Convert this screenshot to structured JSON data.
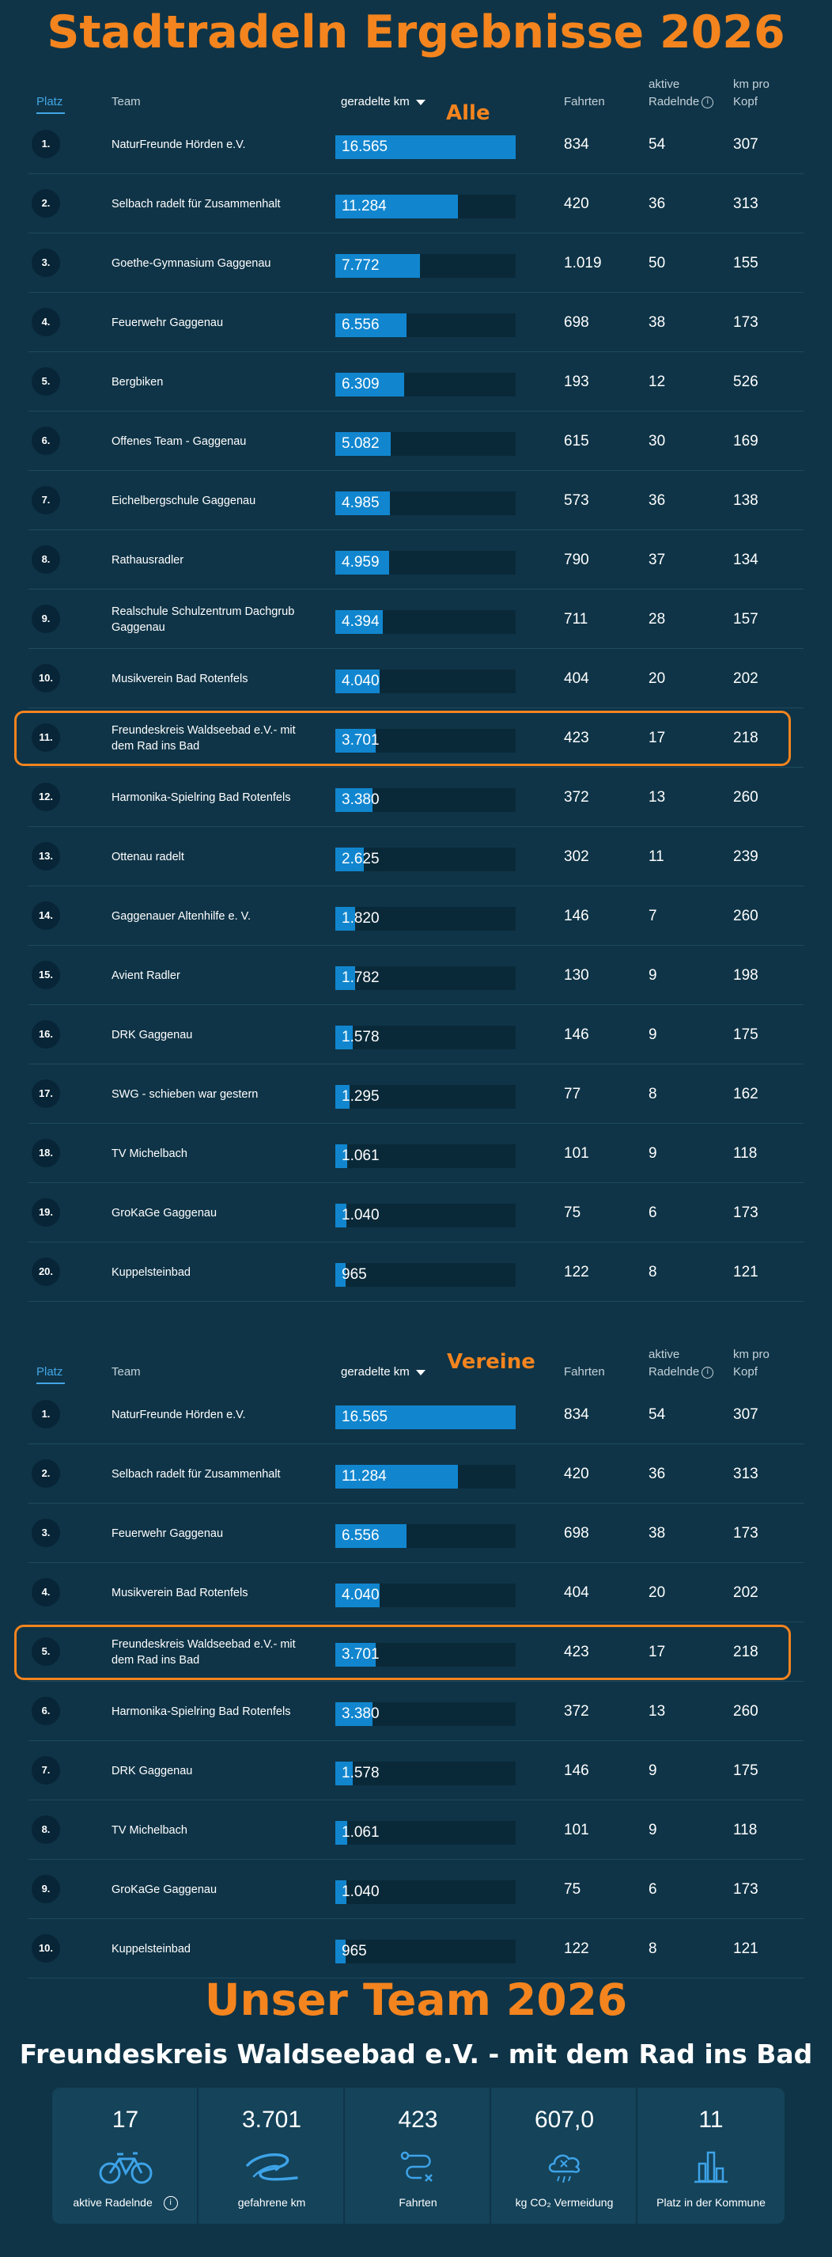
{
  "page_title": "Stadtradeln Ergebnisse 2026",
  "headers": {
    "platz": "Platz",
    "team": "Team",
    "km": "geradelte km",
    "fahrten": "Fahrten",
    "aktive_line1": "aktive",
    "aktive_line2": "Radelnde",
    "kmpro_line1": "km pro",
    "kmpro_line2": "Kopf",
    "info": "i"
  },
  "section_all": {
    "label": "Alle",
    "rows": [
      {
        "rank": "1.",
        "team": "NaturFreunde Hörden e.V.",
        "km": "16.565",
        "km_value": 16565,
        "fahrten": "834",
        "aktive": "54",
        "kmpro": "307"
      },
      {
        "rank": "2.",
        "team": "Selbach radelt für Zusammenhalt",
        "km": "11.284",
        "km_value": 11284,
        "fahrten": "420",
        "aktive": "36",
        "kmpro": "313"
      },
      {
        "rank": "3.",
        "team": "Goethe-Gymnasium Gaggenau",
        "km": "7.772",
        "km_value": 7772,
        "fahrten": "1.019",
        "aktive": "50",
        "kmpro": "155"
      },
      {
        "rank": "4.",
        "team": "Feuerwehr Gaggenau",
        "km": "6.556",
        "km_value": 6556,
        "fahrten": "698",
        "aktive": "38",
        "kmpro": "173"
      },
      {
        "rank": "5.",
        "team": "Bergbiken",
        "km": "6.309",
        "km_value": 6309,
        "fahrten": "193",
        "aktive": "12",
        "kmpro": "526"
      },
      {
        "rank": "6.",
        "team": "Offenes Team - Gaggenau",
        "km": "5.082",
        "km_value": 5082,
        "fahrten": "615",
        "aktive": "30",
        "kmpro": "169"
      },
      {
        "rank": "7.",
        "team": "Eichelbergschule Gaggenau",
        "km": "4.985",
        "km_value": 4985,
        "fahrten": "573",
        "aktive": "36",
        "kmpro": "138"
      },
      {
        "rank": "8.",
        "team": "Rathausradler",
        "km": "4.959",
        "km_value": 4959,
        "fahrten": "790",
        "aktive": "37",
        "kmpro": "134"
      },
      {
        "rank": "9.",
        "team": "Realschule Schulzentrum Dachgrub Gaggenau",
        "km": "4.394",
        "km_value": 4394,
        "fahrten": "711",
        "aktive": "28",
        "kmpro": "157"
      },
      {
        "rank": "10.",
        "team": "Musikverein Bad Rotenfels",
        "km": "4.040",
        "km_value": 4040,
        "fahrten": "404",
        "aktive": "20",
        "kmpro": "202"
      },
      {
        "rank": "11.",
        "team": "Freundeskreis Waldseebad e.V.- mit dem Rad ins Bad",
        "km": "3.701",
        "km_value": 3701,
        "fahrten": "423",
        "aktive": "17",
        "kmpro": "218",
        "highlight": true
      },
      {
        "rank": "12.",
        "team": "Harmonika-Spielring Bad Rotenfels",
        "km": "3.380",
        "km_value": 3380,
        "fahrten": "372",
        "aktive": "13",
        "kmpro": "260"
      },
      {
        "rank": "13.",
        "team": "Ottenau radelt",
        "km": "2.625",
        "km_value": 2625,
        "fahrten": "302",
        "aktive": "11",
        "kmpro": "239"
      },
      {
        "rank": "14.",
        "team": "Gaggenauer Altenhilfe e. V.",
        "km": "1.820",
        "km_value": 1820,
        "fahrten": "146",
        "aktive": "7",
        "kmpro": "260"
      },
      {
        "rank": "15.",
        "team": "Avient Radler",
        "km": "1.782",
        "km_value": 1782,
        "fahrten": "130",
        "aktive": "9",
        "kmpro": "198"
      },
      {
        "rank": "16.",
        "team": "DRK Gaggenau",
        "km": "1.578",
        "km_value": 1578,
        "fahrten": "146",
        "aktive": "9",
        "kmpro": "175"
      },
      {
        "rank": "17.",
        "team": "SWG - schieben war gestern",
        "km": "1.295",
        "km_value": 1295,
        "fahrten": "77",
        "aktive": "8",
        "kmpro": "162"
      },
      {
        "rank": "18.",
        "team": "TV Michelbach",
        "km": "1.061",
        "km_value": 1061,
        "fahrten": "101",
        "aktive": "9",
        "kmpro": "118"
      },
      {
        "rank": "19.",
        "team": "GroKaGe Gaggenau",
        "km": "1.040",
        "km_value": 1040,
        "fahrten": "75",
        "aktive": "6",
        "kmpro": "173"
      },
      {
        "rank": "20.",
        "team": "Kuppelsteinbad",
        "km": "965",
        "km_value": 965,
        "fahrten": "122",
        "aktive": "8",
        "kmpro": "121"
      }
    ]
  },
  "section_vereine": {
    "label": "Vereine",
    "rows": [
      {
        "rank": "1.",
        "team": "NaturFreunde Hörden e.V.",
        "km": "16.565",
        "km_value": 16565,
        "fahrten": "834",
        "aktive": "54",
        "kmpro": "307"
      },
      {
        "rank": "2.",
        "team": "Selbach radelt für Zusammenhalt",
        "km": "11.284",
        "km_value": 11284,
        "fahrten": "420",
        "aktive": "36",
        "kmpro": "313"
      },
      {
        "rank": "3.",
        "team": "Feuerwehr Gaggenau",
        "km": "6.556",
        "km_value": 6556,
        "fahrten": "698",
        "aktive": "38",
        "kmpro": "173"
      },
      {
        "rank": "4.",
        "team": "Musikverein Bad Rotenfels",
        "km": "4.040",
        "km_value": 4040,
        "fahrten": "404",
        "aktive": "20",
        "kmpro": "202"
      },
      {
        "rank": "5.",
        "team": "Freundeskreis Waldseebad e.V.- mit dem Rad ins Bad",
        "km": "3.701",
        "km_value": 3701,
        "fahrten": "423",
        "aktive": "17",
        "kmpro": "218",
        "highlight": true
      },
      {
        "rank": "6.",
        "team": "Harmonika-Spielring Bad Rotenfels",
        "km": "3.380",
        "km_value": 3380,
        "fahrten": "372",
        "aktive": "13",
        "kmpro": "260"
      },
      {
        "rank": "7.",
        "team": "DRK Gaggenau",
        "km": "1.578",
        "km_value": 1578,
        "fahrten": "146",
        "aktive": "9",
        "kmpro": "175"
      },
      {
        "rank": "8.",
        "team": "TV Michelbach",
        "km": "1.061",
        "km_value": 1061,
        "fahrten": "101",
        "aktive": "9",
        "kmpro": "118"
      },
      {
        "rank": "9.",
        "team": "GroKaGe Gaggenau",
        "km": "1.040",
        "km_value": 1040,
        "fahrten": "75",
        "aktive": "6",
        "kmpro": "173"
      },
      {
        "rank": "10.",
        "team": "Kuppelsteinbad",
        "km": "965",
        "km_value": 965,
        "fahrten": "122",
        "aktive": "8",
        "kmpro": "121"
      }
    ]
  },
  "team_section": {
    "title": "Unser Team 2026",
    "team_name": "Freundeskreis Waldseebad e.V. - mit dem Rad ins Bad",
    "stats": [
      {
        "value": "17",
        "label": "aktive Radelnde",
        "icon": "bicycle-icon",
        "info": true
      },
      {
        "value": "3.701",
        "label": "gefahrene km",
        "icon": "road-icon"
      },
      {
        "value": "423",
        "label": "Fahrten",
        "icon": "route-icon"
      },
      {
        "value": "607,0",
        "label": "kg CO₂ Vermeidung",
        "icon": "co2-cloud-icon"
      },
      {
        "value": "11",
        "label": "Platz in der Kommune",
        "icon": "bar-chart-icon"
      }
    ]
  },
  "colors": {
    "background": "#0f3447",
    "accent": "#f4841e",
    "bar": "#1186cf",
    "bar_track": "#0a2938"
  }
}
